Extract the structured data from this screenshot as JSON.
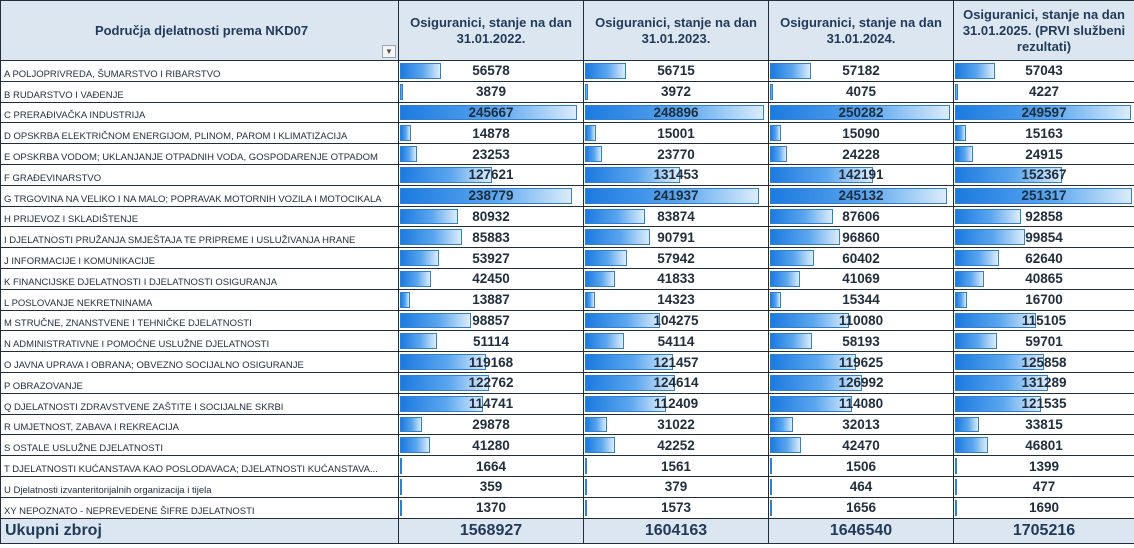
{
  "header": {
    "area": "Područja djelatnosti prema NKD07",
    "columns": [
      "Osiguranici, stanje na dan 31.01.2022.",
      "Osiguranici, stanje na dan 31.01.2023.",
      "Osiguranici, stanje na dan 31.01.2024.",
      "Osiguranici, stanje na dan 31.01.2025. (PRVI službeni rezultati)"
    ],
    "filter_icon": "dropdown-arrow-icon"
  },
  "rows": [
    {
      "label": "A POLJOPRIVREDA, ŠUMARSTVO I RIBARSTVO",
      "values": [
        "56578",
        "56715",
        "57182",
        "57043"
      ]
    },
    {
      "label": "B RUDARSTVO I VAĐENJE",
      "values": [
        "3879",
        "3972",
        "4075",
        "4227"
      ]
    },
    {
      "label": "C PRERAĐIVAČKA INDUSTRIJA",
      "values": [
        "245667",
        "248896",
        "250282",
        "249597"
      ]
    },
    {
      "label": "D OPSKRBA ELEKTRIČNOM ENERGIJOM, PLINOM, PAROM I KLIMATIZACIJA",
      "values": [
        "14878",
        "15001",
        "15090",
        "15163"
      ]
    },
    {
      "label": "E OPSKRBA VODOM; UKLANJANJE OTPADNIH VODA, GOSPODARENJE OTPADOM",
      "values": [
        "23253",
        "23770",
        "24228",
        "24915"
      ]
    },
    {
      "label": "F GRAĐEVINARSTVO",
      "values": [
        "127621",
        "131453",
        "142191",
        "152367"
      ]
    },
    {
      "label": "G TRGOVINA NA VELIKO I NA MALO; POPRAVAK MOTORNIH VOZILA I MOTOCIKALA",
      "values": [
        "238779",
        "241937",
        "245132",
        "251317"
      ]
    },
    {
      "label": "H PRIJEVOZ I SKLADIŠTENJE",
      "values": [
        "80932",
        "83874",
        "87606",
        "92858"
      ]
    },
    {
      "label": "I DJELATNOSTI PRUŽANJA SMJEŠTAJA TE PRIPREME I USLUŽIVANJA HRANE",
      "values": [
        "85883",
        "90791",
        "96860",
        "99854"
      ]
    },
    {
      "label": "J INFORMACIJE I KOMUNIKACIJE",
      "values": [
        "53927",
        "57942",
        "60402",
        "62640"
      ]
    },
    {
      "label": "K FINANCIJSKE DJELATNOSTI I DJELATNOSTI OSIGURANJA",
      "values": [
        "42450",
        "41833",
        "41069",
        "40865"
      ]
    },
    {
      "label": "L POSLOVANJE NEKRETNINAMA",
      "values": [
        "13887",
        "14323",
        "15344",
        "16700"
      ]
    },
    {
      "label": "M STRUČNE, ZNANSTVENE I TEHNIČKE DJELATNOSTI",
      "values": [
        "98857",
        "104275",
        "110080",
        "115105"
      ]
    },
    {
      "label": "N ADMINISTRATIVNE I POMOĆNE USLUŽNE DJELATNOSTI",
      "values": [
        "51114",
        "54114",
        "58193",
        "59701"
      ]
    },
    {
      "label": "O JAVNA UPRAVA I OBRANA; OBVEZNO SOCIJALNO OSIGURANJE",
      "values": [
        "119168",
        "121457",
        "119625",
        "125858"
      ]
    },
    {
      "label": "P OBRAZOVANJE",
      "values": [
        "122762",
        "124614",
        "126992",
        "131289"
      ]
    },
    {
      "label": "Q DJELATNOSTI ZDRAVSTVENE ZAŠTITE I SOCIJALNE SKRBI",
      "values": [
        "114741",
        "112409",
        "114080",
        "121535"
      ]
    },
    {
      "label": "R UMJETNOST, ZABAVA I REKREACIJA",
      "values": [
        "29878",
        "31022",
        "32013",
        "33815"
      ]
    },
    {
      "label": "S OSTALE USLUŽNE DJELATNOSTI",
      "values": [
        "41280",
        "42252",
        "42470",
        "46801"
      ]
    },
    {
      "label": "T DJELATNOSTI KUĆANSTAVA KAO POSLODAVACA; DJELATNOSTI KUĆANSTAVA...",
      "values": [
        "1664",
        "1561",
        "1506",
        "1399"
      ]
    },
    {
      "label": "U Djelatnosti izvanteritorijalnih organizacija i tijela",
      "values": [
        "359",
        "379",
        "464",
        "477"
      ]
    },
    {
      "label": "XY NEPOZNATO - NEPREVEDENE ŠIFRE DJELATNOSTI",
      "values": [
        "1370",
        "1573",
        "1656",
        "1690"
      ]
    }
  ],
  "total": {
    "label": "Ukupni zbroj",
    "values": [
      "1568927",
      "1604163",
      "1646540",
      "1705216"
    ]
  },
  "colors": {
    "header_bg": "#dce6f1",
    "bar_start": "#1c7ae0",
    "bar_end": "#dcecfb",
    "grid": "#1f2d3d"
  }
}
